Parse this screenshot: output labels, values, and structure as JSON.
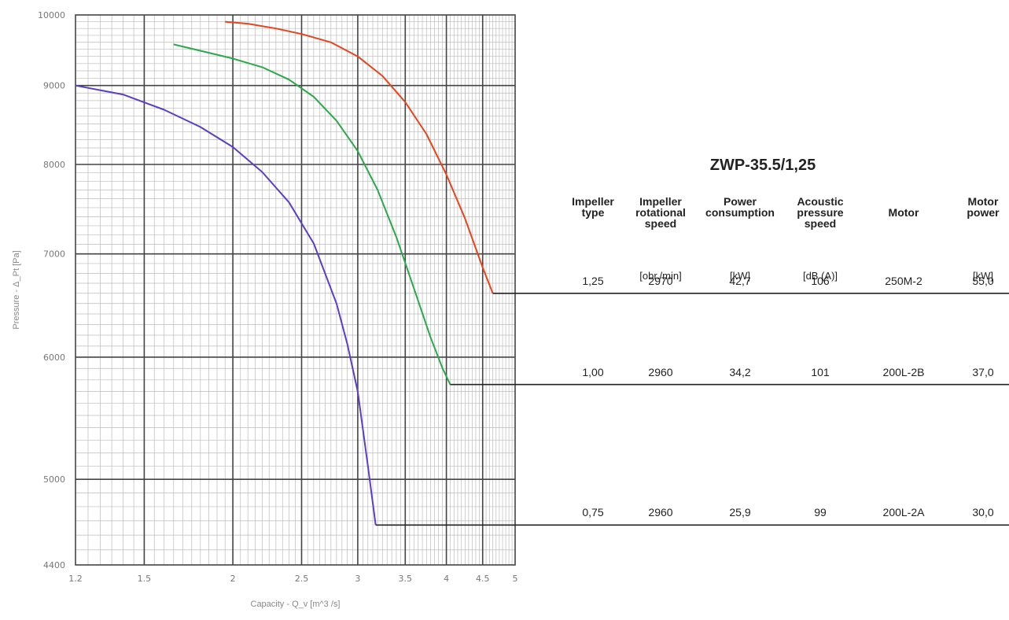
{
  "chart_data": {
    "type": "line",
    "title": "ZWP-35.5/1,25",
    "xlabel": "Capacity - Q_v [m^3 /s]",
    "ylabel": "Pressure - Δ_Pt [Pa]",
    "x_scale": "log",
    "y_scale": "log",
    "xlim": [
      1.2,
      5
    ],
    "ylim": [
      4400,
      10000
    ],
    "x_ticks": [
      "1.2",
      "1.5",
      "2",
      "2.5",
      "3",
      "3.5",
      "4",
      "4.5",
      "5"
    ],
    "y_ticks": [
      "10000",
      "9000",
      "8000",
      "7000",
      "6000",
      "5000",
      "4400"
    ],
    "grid": true,
    "series": [
      {
        "color": "#e8441c",
        "x": [
          1.95,
          2.1,
          2.3,
          2.5,
          2.75,
          3.0,
          3.25,
          3.5,
          3.75,
          4.0,
          4.25,
          4.5,
          4.65
        ],
        "y": [
          9900,
          9870,
          9800,
          9720,
          9600,
          9400,
          9130,
          8780,
          8370,
          7880,
          7380,
          6860,
          6600
        ],
        "end_x": 5
      },
      {
        "color": "#2aa84a",
        "x": [
          1.65,
          1.8,
          2.0,
          2.2,
          2.4,
          2.6,
          2.8,
          3.0,
          3.2,
          3.4,
          3.6,
          3.8,
          3.95,
          4.05
        ],
        "y": [
          9570,
          9480,
          9370,
          9250,
          9080,
          8850,
          8540,
          8160,
          7700,
          7180,
          6650,
          6180,
          5900,
          5760
        ],
        "end_x": 5
      },
      {
        "color": "#5a3ec8",
        "x": [
          1.2,
          1.4,
          1.6,
          1.8,
          2.0,
          2.2,
          2.4,
          2.6,
          2.8,
          2.9,
          3.0,
          3.1,
          3.18
        ],
        "y": [
          9000,
          8880,
          8680,
          8460,
          8210,
          7910,
          7560,
          7110,
          6500,
          6120,
          5700,
          5100,
          4670
        ],
        "end_x": 5
      }
    ]
  },
  "table": {
    "headers": [
      {
        "lines": [
          "Impeller",
          "type"
        ],
        "unit": ""
      },
      {
        "lines": [
          "Impeller",
          "rotational",
          "speed"
        ],
        "unit": "[obr./min]"
      },
      {
        "lines": [
          "Power",
          "consumption"
        ],
        "unit": "[kW]"
      },
      {
        "lines": [
          "Acoustic",
          "pressure",
          "speed"
        ],
        "unit": "[dB (A)]"
      },
      {
        "lines": [
          "Motor"
        ],
        "unit": ""
      },
      {
        "lines": [
          "Motor",
          "power"
        ],
        "unit": "[kW]"
      }
    ],
    "rows": [
      [
        "1,25",
        "2970",
        "42,7",
        "106",
        "250M-2",
        "55,0"
      ],
      [
        "1,00",
        "2960",
        "34,2",
        "101",
        "200L-2B",
        "37,0"
      ],
      [
        "0,75",
        "2960",
        "25,9",
        "99",
        "200L-2A",
        "30,0"
      ]
    ]
  },
  "colors": {
    "grid_major": "#444444",
    "grid_minor": "#bbbbbb",
    "curve_high": "#e8441c",
    "curve_mid": "#2aa84a",
    "curve_low": "#5a3ec8"
  }
}
